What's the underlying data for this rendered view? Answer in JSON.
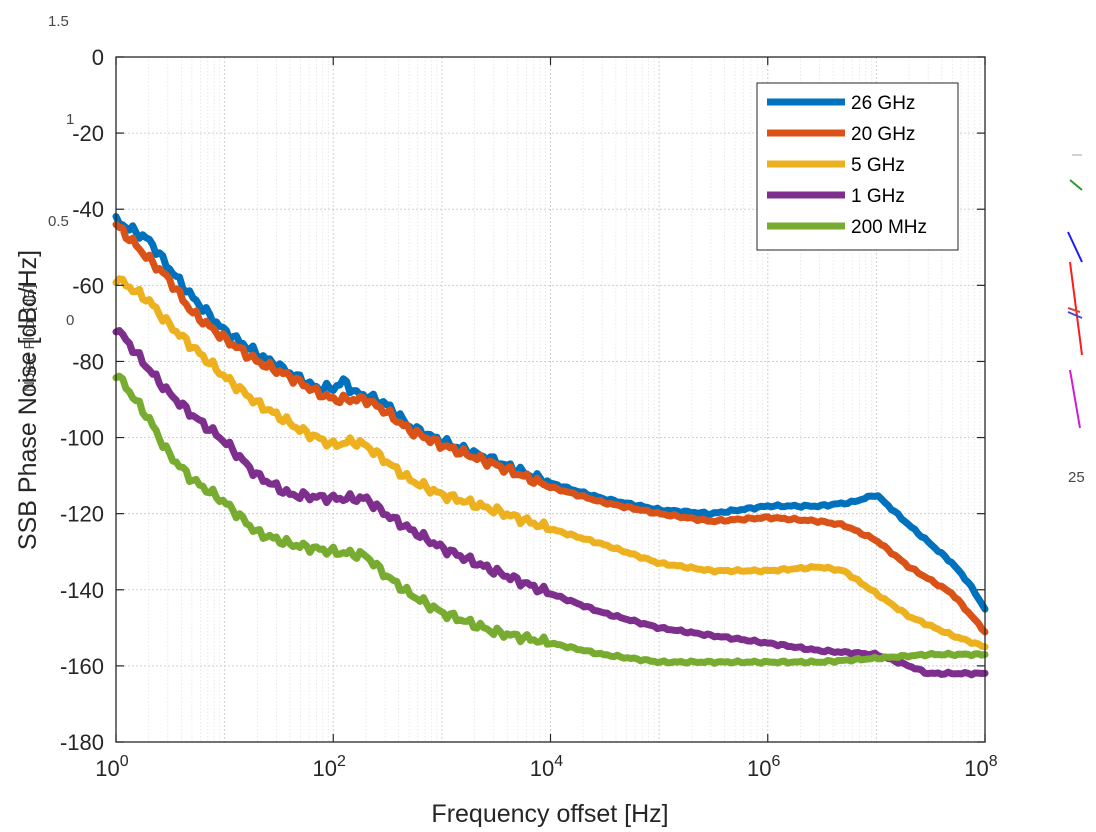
{
  "chart_data": {
    "type": "line",
    "xlabel": "Frequency offset [Hz]",
    "ylabel": "SSB Phase Noise [dBc/Hz]",
    "x_scale": "log",
    "xlim": [
      1,
      100000000
    ],
    "ylim": [
      -180,
      0
    ],
    "grid": true,
    "legend_position": "top-right",
    "xticks": [
      {
        "value": 1,
        "base": "10",
        "exp": "0"
      },
      {
        "value": 100,
        "base": "10",
        "exp": "2"
      },
      {
        "value": 10000,
        "base": "10",
        "exp": "4"
      },
      {
        "value": 1000000,
        "base": "10",
        "exp": "6"
      },
      {
        "value": 100000000,
        "base": "10",
        "exp": "8"
      }
    ],
    "yticks": [
      {
        "value": 0,
        "label": "0"
      },
      {
        "value": -20,
        "label": "-20"
      },
      {
        "value": -40,
        "label": "-40"
      },
      {
        "value": -60,
        "label": "-60"
      },
      {
        "value": -80,
        "label": "-80"
      },
      {
        "value": -100,
        "label": "-100"
      },
      {
        "value": -120,
        "label": "-120"
      },
      {
        "value": -140,
        "label": "-140"
      },
      {
        "value": -160,
        "label": "-160"
      },
      {
        "value": -180,
        "label": "-180"
      }
    ],
    "series": [
      {
        "name": "26 GHz",
        "color": "#0072BD",
        "x": [
          1,
          2,
          3,
          5,
          10,
          20,
          40,
          70,
          100,
          130,
          150,
          200,
          300,
          500,
          1000,
          3000,
          10000,
          30000,
          100000,
          300000,
          1000000,
          3000000,
          6000000,
          10000000,
          20000000,
          50000000,
          70000000,
          100000000
        ],
        "y": [
          -43,
          -48,
          -55,
          -63,
          -72,
          -78,
          -83,
          -87,
          -87,
          -85,
          -88,
          -89,
          -91,
          -97,
          -101,
          -106,
          -112,
          -116,
          -119,
          -120,
          -118,
          -118,
          -117,
          -115,
          -123,
          -133,
          -138,
          -145
        ]
      },
      {
        "name": "20 GHz",
        "color": "#D95319",
        "x": [
          1,
          2,
          3,
          5,
          10,
          20,
          40,
          70,
          100,
          200,
          300,
          500,
          1000,
          3000,
          10000,
          30000,
          100000,
          300000,
          1000000,
          3000000,
          5000000,
          10000000,
          20000000,
          50000000,
          100000000
        ],
        "y": [
          -44,
          -53,
          -58,
          -67,
          -74,
          -80,
          -84,
          -88,
          -90,
          -90,
          -93,
          -98,
          -102,
          -107,
          -113,
          -117,
          -120,
          -122,
          -121,
          -122,
          -123,
          -127,
          -134,
          -141,
          -151
        ]
      },
      {
        "name": "5 GHz",
        "color": "#EDB120",
        "x": [
          1,
          2,
          3,
          5,
          10,
          20,
          30,
          50,
          100,
          150,
          200,
          300,
          500,
          1000,
          3000,
          10000,
          30000,
          100000,
          300000,
          1000000,
          3000000,
          5000000,
          10000000,
          20000000,
          50000000,
          100000000
        ],
        "y": [
          -58,
          -64,
          -70,
          -76,
          -84,
          -91,
          -94,
          -98,
          -102,
          -101,
          -102,
          -106,
          -111,
          -115,
          -119,
          -124,
          -128,
          -133,
          -135,
          -135,
          -134,
          -135,
          -141,
          -147,
          -152,
          -155
        ]
      },
      {
        "name": "1 GHz",
        "color": "#7E2F8E",
        "x": [
          1,
          2,
          3,
          5,
          10,
          20,
          40,
          100,
          200,
          300,
          500,
          1000,
          3000,
          10000,
          30000,
          100000,
          300000,
          1000000,
          3000000,
          10000000,
          20000000,
          30000000,
          100000000
        ],
        "y": [
          -71,
          -82,
          -88,
          -94,
          -101,
          -110,
          -115,
          -116,
          -116,
          -120,
          -124,
          -129,
          -135,
          -141,
          -146,
          -150,
          -152,
          -154,
          -156,
          -157,
          -160,
          -162,
          -162
        ]
      },
      {
        "name": "200 MHz",
        "color": "#77AC30",
        "x": [
          1,
          2,
          3,
          5,
          10,
          20,
          40,
          100,
          200,
          300,
          500,
          1000,
          3000,
          10000,
          30000,
          100000,
          300000,
          1000000,
          3000000,
          10000000,
          30000000,
          100000000
        ],
        "y": [
          -83,
          -95,
          -104,
          -111,
          -117,
          -125,
          -128,
          -130,
          -131,
          -136,
          -141,
          -146,
          -151,
          -154,
          -157,
          -159,
          -159,
          -159,
          -159,
          -158,
          -157,
          -157
        ]
      }
    ]
  },
  "background_artifacts": {
    "left_labels": [
      "1.5",
      "1",
      "0.5",
      "0"
    ],
    "vertical_label": "Noise Floor [dB]",
    "right_label": "25"
  }
}
